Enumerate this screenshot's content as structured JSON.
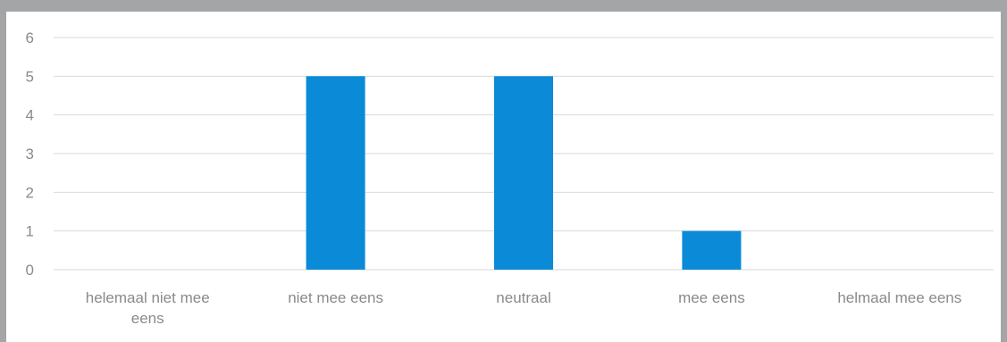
{
  "chart_data": {
    "type": "bar",
    "categories": [
      "helemaal niet mee eens",
      "niet mee eens",
      "neutraal",
      "mee eens",
      "helmaal mee eens"
    ],
    "category_lines": [
      [
        "helemaal niet mee",
        "eens"
      ],
      [
        "niet mee eens"
      ],
      [
        "neutraal"
      ],
      [
        "mee eens"
      ],
      [
        "helmaal mee eens"
      ]
    ],
    "values": [
      0,
      5,
      5,
      1,
      0
    ],
    "title": "",
    "xlabel": "",
    "ylabel": "",
    "ylim": [
      0,
      6
    ],
    "yticks": [
      0,
      1,
      2,
      3,
      4,
      5,
      6
    ],
    "grid": true,
    "legend": "none"
  },
  "colors": {
    "bar": "#0b8ad8",
    "grid": "#d9d9d9",
    "text": "#8a8a8a",
    "frame_background": "#a3a5a7",
    "plot_background": "#ffffff"
  }
}
